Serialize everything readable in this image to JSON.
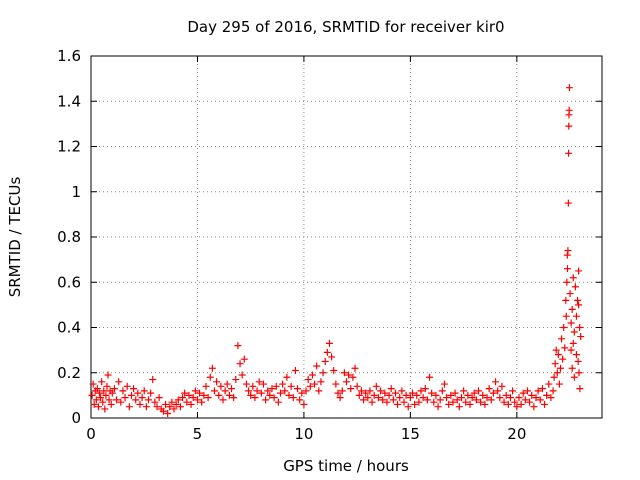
{
  "chart_data": {
    "type": "scatter",
    "title": "Day 295 of 2016, SRMTID for receiver kir0",
    "xlabel": "GPS time / hours",
    "ylabel": "SRMTID / TECUs",
    "xlim": [
      0,
      24
    ],
    "ylim": [
      0,
      1.6
    ],
    "xticks": [
      0,
      5,
      10,
      15,
      20
    ],
    "xtick_labels": [
      "0",
      "5",
      "10",
      "15",
      "20"
    ],
    "yticks": [
      0,
      0.2,
      0.4,
      0.6,
      0.8,
      1.0,
      1.2,
      1.4,
      1.6
    ],
    "ytick_labels": [
      "0",
      "0.2",
      "0.4",
      "0.6",
      "0.8",
      "1",
      "1.2",
      "1.4",
      "1.6"
    ],
    "grid": true,
    "marker": "+",
    "marker_color": "#ff0000",
    "series": [
      {
        "name": "kir0",
        "points": [
          [
            0.05,
            0.1
          ],
          [
            0.1,
            0.15
          ],
          [
            0.15,
            0.06
          ],
          [
            0.2,
            0.12
          ],
          [
            0.25,
            0.08
          ],
          [
            0.3,
            0.13
          ],
          [
            0.35,
            0.05
          ],
          [
            0.4,
            0.11
          ],
          [
            0.45,
            0.09
          ],
          [
            0.5,
            0.16
          ],
          [
            0.55,
            0.07
          ],
          [
            0.6,
            0.12
          ],
          [
            0.65,
            0.04
          ],
          [
            0.7,
            0.1
          ],
          [
            0.75,
            0.14
          ],
          [
            0.8,
            0.19
          ],
          [
            0.85,
            0.08
          ],
          [
            0.9,
            0.12
          ],
          [
            0.95,
            0.06
          ],
          [
            1.0,
            0.11
          ],
          [
            1.1,
            0.13
          ],
          [
            1.2,
            0.08
          ],
          [
            1.3,
            0.16
          ],
          [
            1.4,
            0.07
          ],
          [
            1.5,
            0.12
          ],
          [
            1.6,
            0.09
          ],
          [
            1.7,
            0.14
          ],
          [
            1.8,
            0.05
          ],
          [
            1.9,
            0.1
          ],
          [
            2.0,
            0.13
          ],
          [
            2.1,
            0.08
          ],
          [
            2.2,
            0.11
          ],
          [
            2.3,
            0.06
          ],
          [
            2.4,
            0.09
          ],
          [
            2.5,
            0.12
          ],
          [
            2.6,
            0.05
          ],
          [
            2.7,
            0.08
          ],
          [
            2.8,
            0.11
          ],
          [
            2.9,
            0.17
          ],
          [
            3.0,
            0.07
          ],
          [
            3.1,
            0.05
          ],
          [
            3.2,
            0.09
          ],
          [
            3.3,
            0.04
          ],
          [
            3.4,
            0.03
          ],
          [
            3.5,
            0.06
          ],
          [
            3.6,
            0.02
          ],
          [
            3.7,
            0.05
          ],
          [
            3.8,
            0.07
          ],
          [
            3.9,
            0.04
          ],
          [
            4.0,
            0.06
          ],
          [
            4.1,
            0.08
          ],
          [
            4.2,
            0.05
          ],
          [
            4.3,
            0.09
          ],
          [
            4.4,
            0.11
          ],
          [
            4.5,
            0.07
          ],
          [
            4.6,
            0.1
          ],
          [
            4.7,
            0.06
          ],
          [
            4.8,
            0.09
          ],
          [
            4.9,
            0.12
          ],
          [
            5.0,
            0.08
          ],
          [
            5.1,
            0.11
          ],
          [
            5.2,
            0.07
          ],
          [
            5.3,
            0.1
          ],
          [
            5.4,
            0.14
          ],
          [
            5.5,
            0.09
          ],
          [
            5.6,
            0.18
          ],
          [
            5.7,
            0.22
          ],
          [
            5.8,
            0.12
          ],
          [
            5.9,
            0.16
          ],
          [
            6.0,
            0.1
          ],
          [
            6.1,
            0.14
          ],
          [
            6.2,
            0.08
          ],
          [
            6.3,
            0.12
          ],
          [
            6.4,
            0.15
          ],
          [
            6.5,
            0.1
          ],
          [
            6.6,
            0.13
          ],
          [
            6.7,
            0.09
          ],
          [
            6.8,
            0.17
          ],
          [
            6.9,
            0.32
          ],
          [
            7.0,
            0.24
          ],
          [
            7.1,
            0.19
          ],
          [
            7.2,
            0.26
          ],
          [
            7.3,
            0.15
          ],
          [
            7.4,
            0.12
          ],
          [
            7.5,
            0.1
          ],
          [
            7.6,
            0.14
          ],
          [
            7.7,
            0.09
          ],
          [
            7.8,
            0.12
          ],
          [
            7.9,
            0.16
          ],
          [
            8.0,
            0.11
          ],
          [
            8.1,
            0.15
          ],
          [
            8.2,
            0.08
          ],
          [
            8.3,
            0.12
          ],
          [
            8.4,
            0.1
          ],
          [
            8.5,
            0.13
          ],
          [
            8.6,
            0.09
          ],
          [
            8.7,
            0.14
          ],
          [
            8.8,
            0.07
          ],
          [
            8.9,
            0.11
          ],
          [
            9.0,
            0.15
          ],
          [
            9.1,
            0.12
          ],
          [
            9.2,
            0.18
          ],
          [
            9.3,
            0.1
          ],
          [
            9.4,
            0.14
          ],
          [
            9.5,
            0.09
          ],
          [
            9.6,
            0.21
          ],
          [
            9.7,
            0.13
          ],
          [
            9.8,
            0.08
          ],
          [
            9.9,
            0.11
          ],
          [
            10.0,
            0.06
          ],
          [
            10.1,
            0.12
          ],
          [
            10.2,
            0.17
          ],
          [
            10.3,
            0.14
          ],
          [
            10.4,
            0.19
          ],
          [
            10.5,
            0.15
          ],
          [
            10.6,
            0.23
          ],
          [
            10.7,
            0.12
          ],
          [
            10.8,
            0.16
          ],
          [
            10.9,
            0.2
          ],
          [
            11.0,
            0.25
          ],
          [
            11.1,
            0.29
          ],
          [
            11.2,
            0.33
          ],
          [
            11.3,
            0.27
          ],
          [
            11.4,
            0.21
          ],
          [
            11.5,
            0.15
          ],
          [
            11.6,
            0.11
          ],
          [
            11.7,
            0.09
          ],
          [
            11.8,
            0.12
          ],
          [
            11.9,
            0.2
          ],
          [
            12.0,
            0.16
          ],
          [
            12.1,
            0.19
          ],
          [
            12.2,
            0.13
          ],
          [
            12.3,
            0.18
          ],
          [
            12.4,
            0.22
          ],
          [
            12.5,
            0.14
          ],
          [
            12.6,
            0.1
          ],
          [
            12.7,
            0.12
          ],
          [
            12.8,
            0.08
          ],
          [
            12.9,
            0.11
          ],
          [
            13.0,
            0.09
          ],
          [
            13.1,
            0.12
          ],
          [
            13.2,
            0.07
          ],
          [
            13.3,
            0.1
          ],
          [
            13.4,
            0.14
          ],
          [
            13.5,
            0.09
          ],
          [
            13.6,
            0.12
          ],
          [
            13.7,
            0.08
          ],
          [
            13.8,
            0.11
          ],
          [
            13.9,
            0.07
          ],
          [
            14.0,
            0.1
          ],
          [
            14.1,
            0.13
          ],
          [
            14.2,
            0.08
          ],
          [
            14.3,
            0.11
          ],
          [
            14.4,
            0.06
          ],
          [
            14.5,
            0.09
          ],
          [
            14.6,
            0.12
          ],
          [
            14.7,
            0.07
          ],
          [
            14.8,
            0.1
          ],
          [
            14.9,
            0.05
          ],
          [
            15.0,
            0.09
          ],
          [
            15.1,
            0.11
          ],
          [
            15.2,
            0.06
          ],
          [
            15.3,
            0.1
          ],
          [
            15.4,
            0.07
          ],
          [
            15.5,
            0.12
          ],
          [
            15.6,
            0.09
          ],
          [
            15.7,
            0.13
          ],
          [
            15.8,
            0.08
          ],
          [
            15.9,
            0.18
          ],
          [
            16.0,
            0.11
          ],
          [
            16.1,
            0.07
          ],
          [
            16.2,
            0.1
          ],
          [
            16.3,
            0.05
          ],
          [
            16.4,
            0.08
          ],
          [
            16.5,
            0.12
          ],
          [
            16.6,
            0.15
          ],
          [
            16.7,
            0.09
          ],
          [
            16.8,
            0.06
          ],
          [
            16.9,
            0.1
          ],
          [
            17.0,
            0.07
          ],
          [
            17.1,
            0.11
          ],
          [
            17.2,
            0.08
          ],
          [
            17.3,
            0.05
          ],
          [
            17.4,
            0.09
          ],
          [
            17.5,
            0.12
          ],
          [
            17.6,
            0.07
          ],
          [
            17.7,
            0.1
          ],
          [
            17.8,
            0.06
          ],
          [
            17.9,
            0.09
          ],
          [
            18.0,
            0.11
          ],
          [
            18.1,
            0.08
          ],
          [
            18.2,
            0.12
          ],
          [
            18.3,
            0.07
          ],
          [
            18.4,
            0.1
          ],
          [
            18.5,
            0.06
          ],
          [
            18.6,
            0.09
          ],
          [
            18.7,
            0.13
          ],
          [
            18.8,
            0.08
          ],
          [
            18.9,
            0.11
          ],
          [
            19.0,
            0.16
          ],
          [
            19.1,
            0.12
          ],
          [
            19.2,
            0.09
          ],
          [
            19.3,
            0.14
          ],
          [
            19.4,
            0.07
          ],
          [
            19.5,
            0.1
          ],
          [
            19.6,
            0.06
          ],
          [
            19.7,
            0.09
          ],
          [
            19.8,
            0.12
          ],
          [
            19.9,
            0.07
          ],
          [
            20.0,
            0.05
          ],
          [
            20.1,
            0.09
          ],
          [
            20.2,
            0.06
          ],
          [
            20.3,
            0.11
          ],
          [
            20.4,
            0.08
          ],
          [
            20.5,
            0.12
          ],
          [
            20.6,
            0.07
          ],
          [
            20.7,
            0.1
          ],
          [
            20.8,
            0.05
          ],
          [
            20.9,
            0.09
          ],
          [
            21.0,
            0.12
          ],
          [
            21.1,
            0.08
          ],
          [
            21.2,
            0.13
          ],
          [
            21.3,
            0.06
          ],
          [
            21.4,
            0.1
          ],
          [
            21.5,
            0.15
          ],
          [
            21.6,
            0.09
          ],
          [
            21.7,
            0.12
          ],
          [
            21.75,
            0.18
          ],
          [
            21.8,
            0.24
          ],
          [
            21.85,
            0.3
          ],
          [
            21.9,
            0.2
          ],
          [
            21.95,
            0.28
          ],
          [
            22.0,
            0.15
          ],
          [
            22.05,
            0.22
          ],
          [
            22.1,
            0.35
          ],
          [
            22.15,
            0.26
          ],
          [
            22.2,
            0.4
          ],
          [
            22.25,
            0.31
          ],
          [
            22.3,
            0.52
          ],
          [
            22.32,
            0.45
          ],
          [
            22.35,
            0.6
          ],
          [
            22.37,
            0.72
          ],
          [
            22.38,
            0.66
          ],
          [
            22.4,
            0.74
          ],
          [
            22.42,
            0.95
          ],
          [
            22.43,
            1.17
          ],
          [
            22.44,
            1.29
          ],
          [
            22.45,
            1.34
          ],
          [
            22.46,
            1.36
          ],
          [
            22.47,
            1.46
          ],
          [
            22.5,
            0.55
          ],
          [
            22.55,
            0.42
          ],
          [
            22.6,
            0.48
          ],
          [
            22.65,
            0.33
          ],
          [
            22.7,
            0.38
          ],
          [
            22.75,
            0.58
          ],
          [
            22.8,
            0.28
          ],
          [
            22.85,
            0.52
          ],
          [
            22.9,
            0.65
          ],
          [
            22.95,
            0.4
          ],
          [
            23.0,
            0.36
          ],
          [
            22.88,
            0.25
          ],
          [
            22.92,
            0.2
          ],
          [
            22.96,
            0.13
          ],
          [
            22.6,
            0.22
          ],
          [
            22.7,
            0.18
          ],
          [
            22.55,
            0.3
          ],
          [
            22.8,
            0.45
          ],
          [
            22.9,
            0.5
          ],
          [
            22.65,
            0.62
          ]
        ]
      }
    ]
  }
}
